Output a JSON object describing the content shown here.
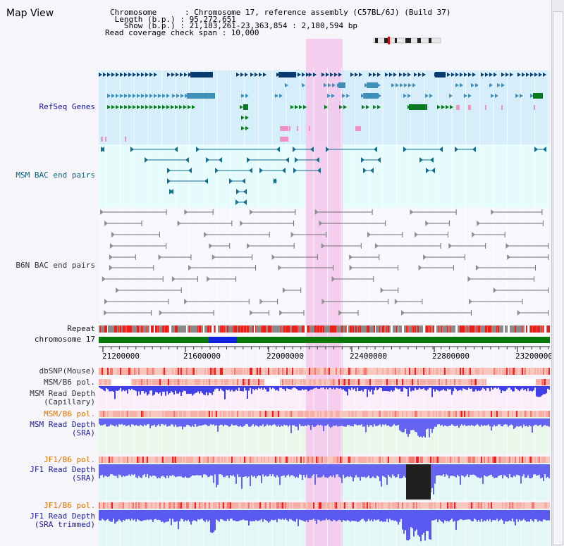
{
  "header": {
    "title": "Map View",
    "info_lines": [
      "Chromosome      : Chromosome 17, reference assembly (C57BL/6J) (Build 37)",
      " Length (b.p.) : 95,272,651",
      "   Show (b.p.) : 21,183,261-23,363,854 : 2,180,594 bp",
      "Read coverage check span : 10,000"
    ]
  },
  "tracks": {
    "refseq": "RefSeq Genes",
    "msm_bac": "MSM BAC end pairs",
    "b6n_bac": "B6N BAC end pairs",
    "repeat": "Repeat",
    "chromosome": "chromosome 17",
    "dbsnp": "dbSNP(Mouse)",
    "msm_b6_pol_1": "MSM/B6 pol.",
    "msm_read_depth_cap_1": "MSM Read Depth",
    "msm_read_depth_cap_2": "(Capillary)",
    "msm_b6_pol_2": "MSM/B6 pol.",
    "msm_read_depth_sra_1": "MSM Read Depth",
    "msm_read_depth_sra_2": "(SRA)",
    "jf1_b6_pol_1": "JF1/B6 pol.",
    "jf1_read_depth_sra_1": "JF1 Read Depth",
    "jf1_read_depth_sra_2": "(SRA)",
    "jf1_b6_pol_2": "JF1/B6 pol.",
    "jf1_read_depth_trim_1": "JF1 Read Depth",
    "jf1_read_depth_trim_2": "(SRA trimmed)"
  },
  "axis": {
    "ticks": [
      "21200000",
      "21600000",
      "22000000",
      "22400000",
      "22800000",
      "23200000"
    ]
  },
  "colors": {
    "refseq_bg": "#d6eefa",
    "bac_bg": "#e6fbfb",
    "highlight": "#f5c6ec",
    "chromosome": "#087808",
    "chromosome_mark": "#1020e0",
    "repeat_red": "#e8201a",
    "depth_blue": "#3030f0"
  }
}
